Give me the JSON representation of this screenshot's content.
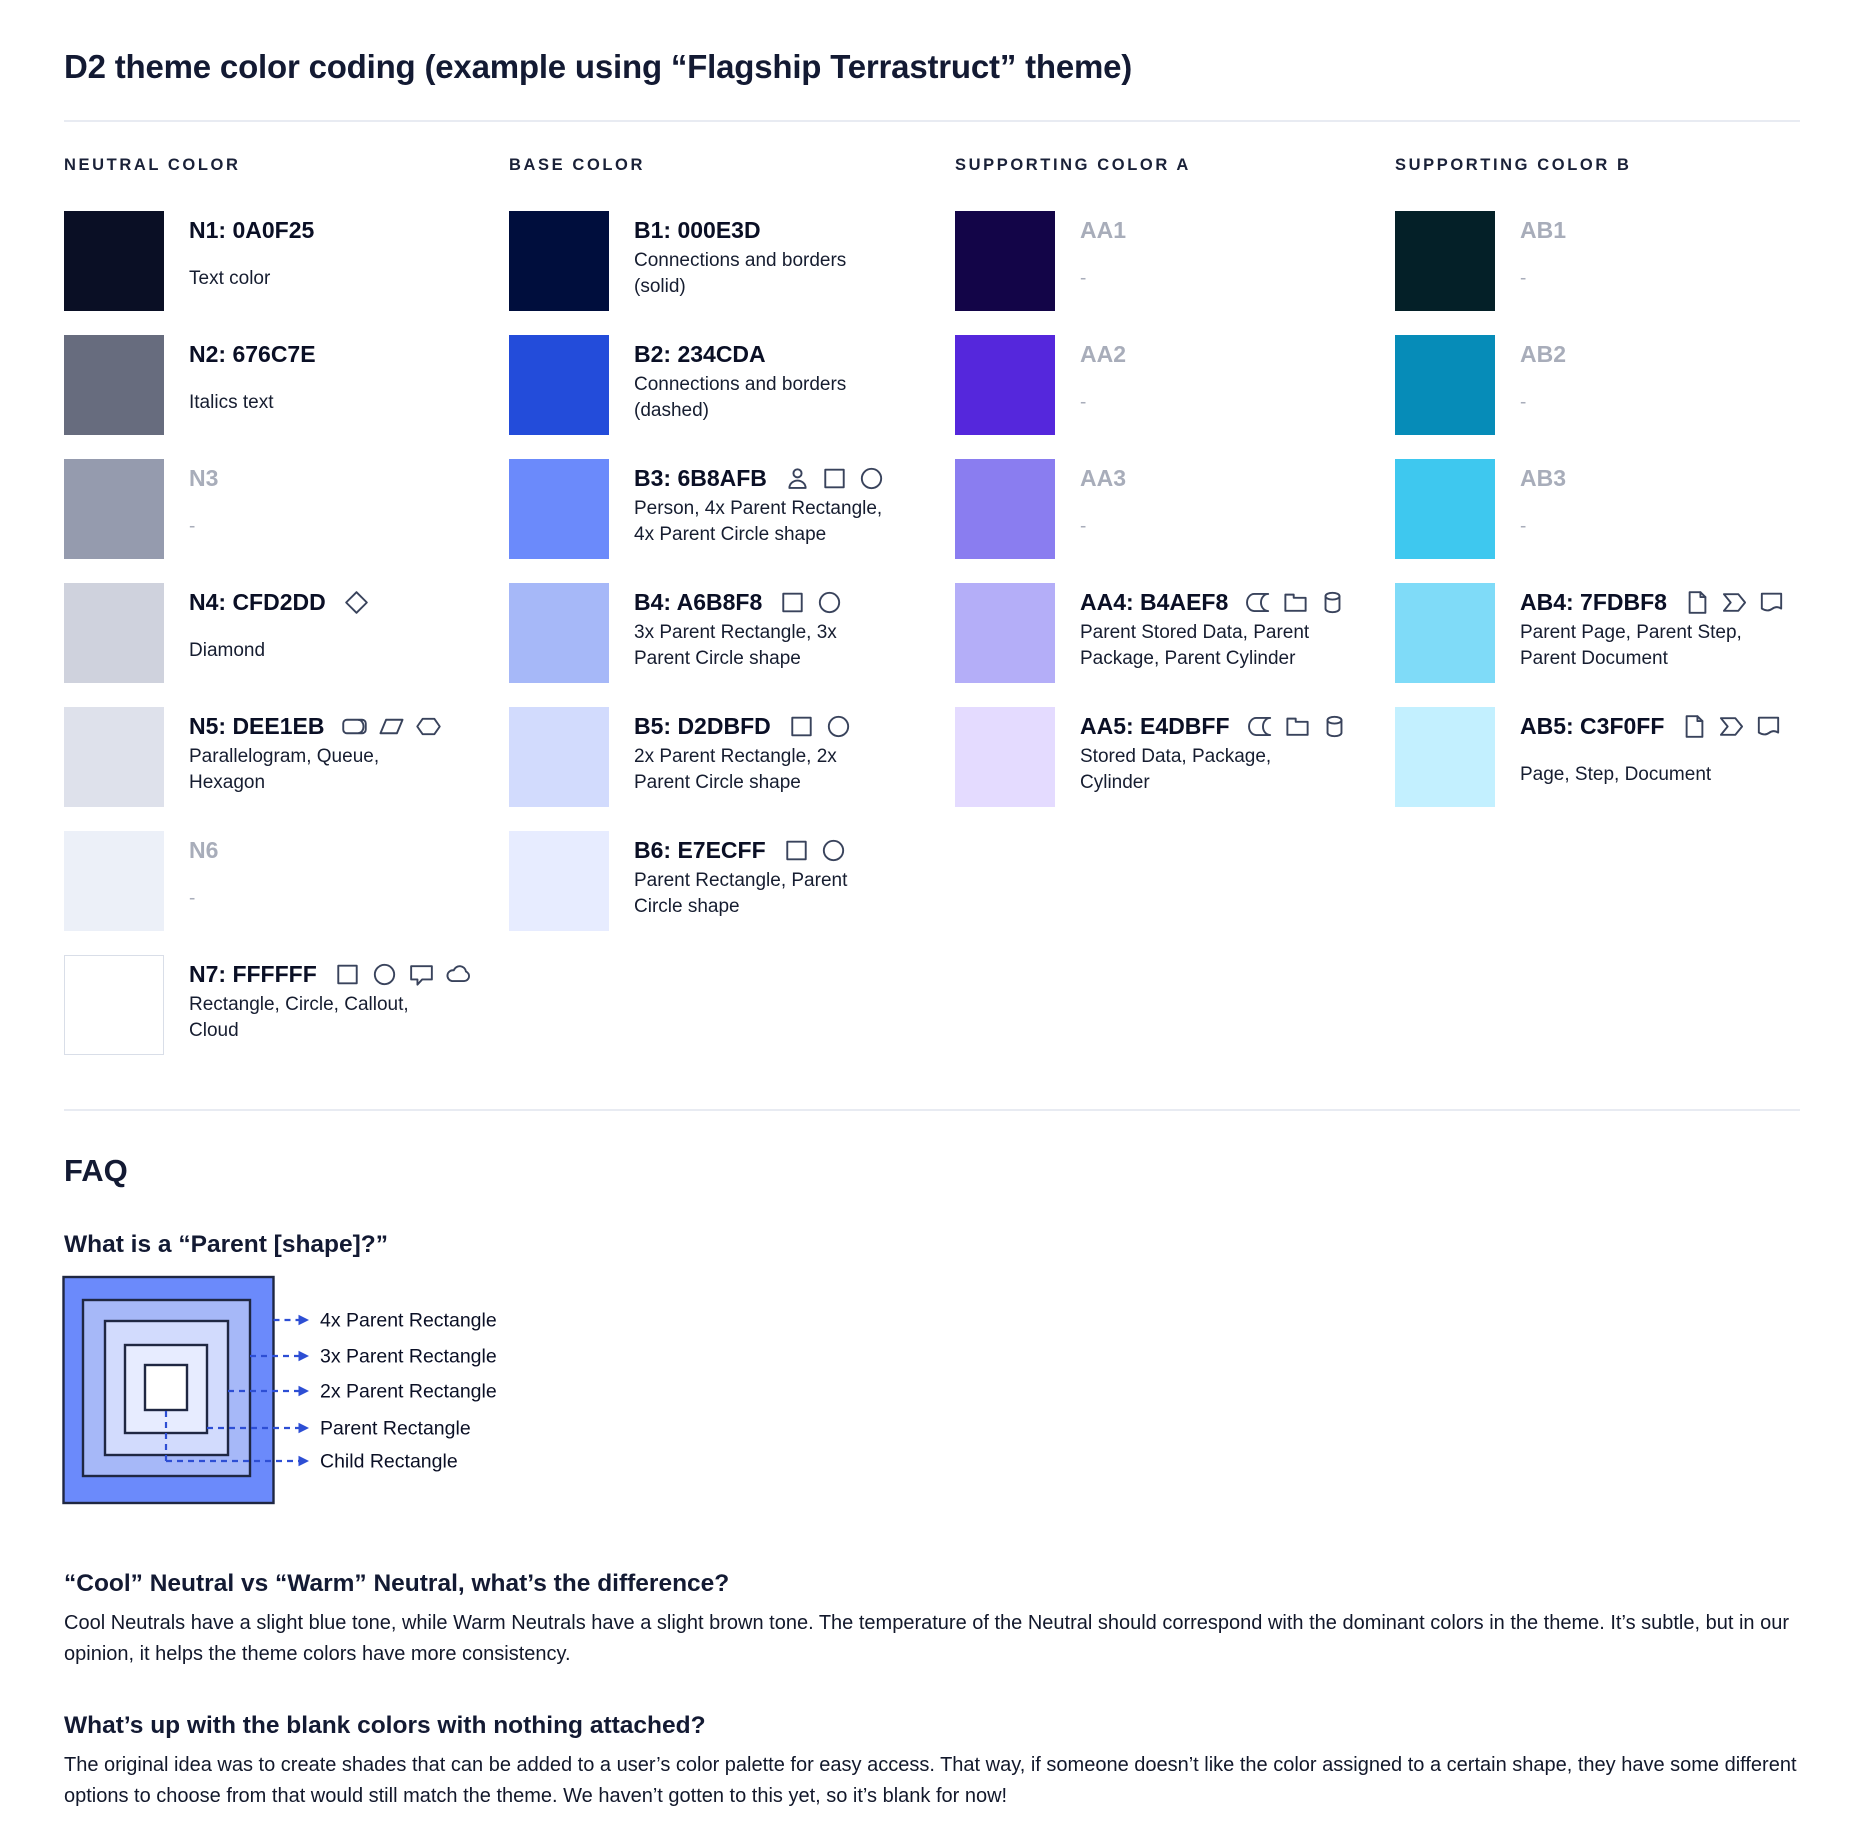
{
  "title": "D2 theme color coding (example using “Flagship Terrastruct” theme)",
  "columns": [
    {
      "header": "NEUTRAL COLOR",
      "swatches": [
        {
          "label": "N1: 0A0F25",
          "color": "#0A0F25",
          "desc": "Text color",
          "icons": []
        },
        {
          "label": "N2: 676C7E",
          "color": "#676C7E",
          "desc": "Italics text",
          "icons": []
        },
        {
          "label": "N3",
          "color": "#959BAE",
          "desc": "-",
          "icons": []
        },
        {
          "label": "N4: CFD2DD",
          "color": "#CFD2DD",
          "desc": "Diamond",
          "icons": [
            "diamond"
          ]
        },
        {
          "label": "N5: DEE1EB",
          "color": "#DEE1EB",
          "desc": "Parallelogram, Queue, Hexagon",
          "icons": [
            "queue",
            "parallelogram",
            "hexagon"
          ]
        },
        {
          "label": "N6",
          "color": "#ECF0F8",
          "desc": "-",
          "icons": []
        },
        {
          "label": "N7: FFFFFF",
          "color": "#FFFFFF",
          "desc": "Rectangle, Circle, Callout, Cloud",
          "icons": [
            "rectangle",
            "circle",
            "callout",
            "cloud"
          ]
        }
      ]
    },
    {
      "header": "BASE COLOR",
      "swatches": [
        {
          "label": "B1: 000E3D",
          "color": "#000E3D",
          "desc": "Connections and borders (solid)",
          "icons": []
        },
        {
          "label": "B2: 234CDA",
          "color": "#234CDA",
          "desc": "Connections and borders (dashed)",
          "icons": []
        },
        {
          "label": "B3: 6B8AFB",
          "color": "#6B8AFB",
          "desc": "Person, 4x Parent Rectangle, 4x Parent Circle shape",
          "icons": [
            "person",
            "rectangle",
            "circle"
          ]
        },
        {
          "label": "B4: A6B8F8",
          "color": "#A6B8F8",
          "desc": "3x Parent Rectangle, 3x Parent Circle shape",
          "icons": [
            "rectangle",
            "circle"
          ]
        },
        {
          "label": "B5: D2DBFD",
          "color": "#D2DBFD",
          "desc": "2x Parent Rectangle, 2x Parent Circle shape",
          "icons": [
            "rectangle",
            "circle"
          ]
        },
        {
          "label": "B6: E7ECFF",
          "color": "#E7ECFF",
          "desc": "Parent Rectangle, Parent Circle shape",
          "icons": [
            "rectangle",
            "circle"
          ]
        }
      ]
    },
    {
      "header": "SUPPORTING COLOR A",
      "swatches": [
        {
          "label": "AA1",
          "color": "#130548",
          "desc": "-",
          "icons": []
        },
        {
          "label": "AA2",
          "color": "#5527DC",
          "desc": "-",
          "icons": []
        },
        {
          "label": "AA3",
          "color": "#8A7DF0",
          "desc": "-",
          "icons": []
        },
        {
          "label": "AA4: B4AEF8",
          "color": "#B4AEF8",
          "desc": "Parent Stored Data, Parent Package,  Parent Cylinder",
          "icons": [
            "stored-data",
            "package",
            "cylinder"
          ]
        },
        {
          "label": "AA5: E4DBFF",
          "color": "#E4DBFF",
          "desc": "Stored Data, Package, Cylinder",
          "icons": [
            "stored-data",
            "package",
            "cylinder"
          ]
        }
      ]
    },
    {
      "header": "SUPPORTING COLOR B",
      "swatches": [
        {
          "label": "AB1",
          "color": "#042028",
          "desc": "-",
          "icons": []
        },
        {
          "label": "AB2",
          "color": "#068CB8",
          "desc": "-",
          "icons": []
        },
        {
          "label": "AB3",
          "color": "#3EC8EF",
          "desc": "-",
          "icons": []
        },
        {
          "label": "AB4: 7FDBF8",
          "color": "#7FDBF8",
          "desc": "Parent Page, Parent Step, Parent Document",
          "icons": [
            "page",
            "step",
            "document"
          ]
        },
        {
          "label": "AB5: C3F0FF",
          "color": "#C3F0FF",
          "desc": "Page, Step, Document",
          "icons": [
            "page",
            "step",
            "document"
          ]
        }
      ]
    }
  ],
  "faq": {
    "heading": "FAQ",
    "q1": {
      "question": "What is a “Parent [shape]?”",
      "diagram_labels": [
        "4x Parent Rectangle",
        "3x Parent Rectangle",
        "2x Parent Rectangle",
        "Parent Rectangle",
        "Child Rectangle"
      ],
      "diagram_colors": [
        "#6B8AFB",
        "#A6B8F8",
        "#D2DBFD",
        "#E7ECFF",
        "#FFFFFF"
      ]
    },
    "q2": {
      "question": "“Cool” Neutral vs “Warm” Neutral, what’s the difference?",
      "answer": "Cool Neutrals have a slight blue tone, while Warm Neutrals have a slight brown tone. The temperature of the Neutral should correspond with the dominant colors in the theme. It’s subtle, but in our opinion, it helps the theme colors have more consistency."
    },
    "q3": {
      "question": "What’s up with the blank colors with nothing attached?",
      "answer": "The original idea was to create shades that can be added to a user’s color palette for easy access. That way, if someone doesn’t like the color assigned to a certain shape, they have some different options to choose from that would still match the theme. We haven’t gotten to this yet, so it’s blank for now!"
    }
  }
}
